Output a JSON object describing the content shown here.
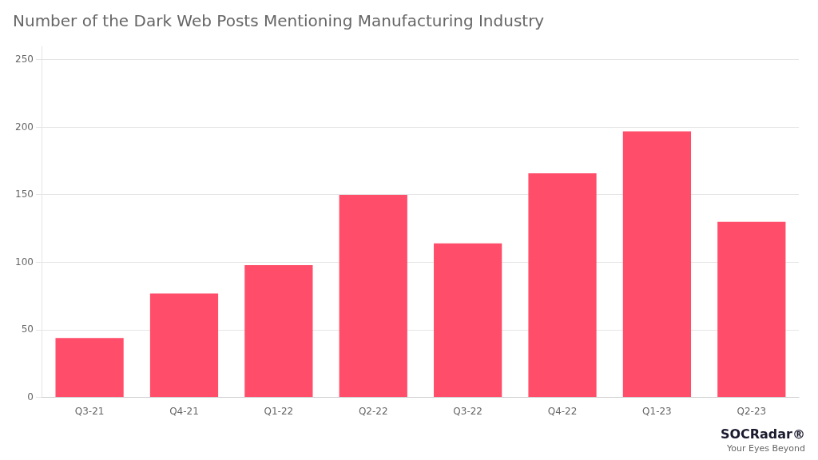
{
  "chart_data": {
    "type": "bar",
    "title": "Number of the Dark Web Posts Mentioning Manufacturing Industry",
    "categories": [
      "Q3-21",
      "Q4-21",
      "Q1-22",
      "Q2-22",
      "Q3-22",
      "Q4-22",
      "Q1-23",
      "Q2-23"
    ],
    "values": [
      44,
      77,
      98,
      150,
      114,
      166,
      197,
      130
    ],
    "color": "#FF4D6A",
    "ylim": [
      0,
      260
    ],
    "yticks": [
      0,
      50,
      100,
      150,
      200,
      250
    ],
    "grid": true,
    "annotations": [
      "SOCRadar®",
      "Your Eyes Beyond"
    ]
  }
}
